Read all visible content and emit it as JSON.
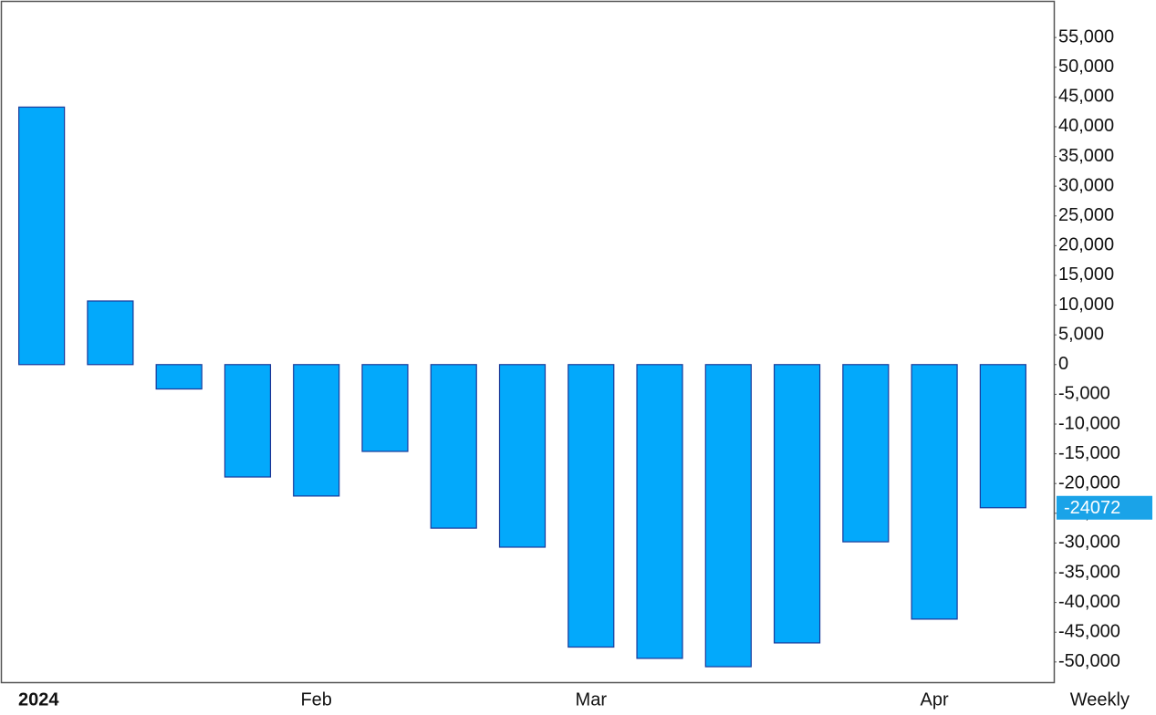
{
  "chart_data": {
    "type": "bar",
    "categories": [
      "2024",
      null,
      null,
      null,
      "Feb",
      null,
      null,
      null,
      "Mar",
      null,
      null,
      null,
      null,
      "Apr",
      null
    ],
    "values": [
      43300,
      10700,
      -4100,
      -18900,
      -22100,
      -14600,
      -27500,
      -30700,
      -47500,
      -49400,
      -50800,
      -46800,
      -29800,
      -42800,
      -24072
    ],
    "color": "#03a9fb",
    "edge_color": "#1a3a9a",
    "period": "Weekly",
    "ylim": [
      -53400,
      61000
    ],
    "yticks": [
      {
        "value": 55000,
        "label": "55,000"
      },
      {
        "value": 50000,
        "label": "50,000"
      },
      {
        "value": 45000,
        "label": "45,000"
      },
      {
        "value": 40000,
        "label": "40,000"
      },
      {
        "value": 35000,
        "label": "35,000"
      },
      {
        "value": 30000,
        "label": "30,000"
      },
      {
        "value": 25000,
        "label": "25,000"
      },
      {
        "value": 20000,
        "label": "20,000"
      },
      {
        "value": 15000,
        "label": "15,000"
      },
      {
        "value": 10000,
        "label": "10,000"
      },
      {
        "value": 5000,
        "label": "5,000"
      },
      0,
      {
        "value": -5000,
        "label": "-5,000"
      },
      {
        "value": -10000,
        "label": "-10,000"
      },
      {
        "value": -15000,
        "label": "-15,000"
      },
      {
        "value": -20000,
        "label": "-20,000"
      },
      {
        "value": -25000,
        "label": "-25,000"
      },
      {
        "value": -30000,
        "label": "-30,000"
      },
      {
        "value": -35000,
        "label": "-35,000"
      },
      {
        "value": -40000,
        "label": "-40,000"
      },
      {
        "value": -45000,
        "label": "-45,000"
      },
      {
        "value": -50000,
        "label": "-50,000"
      }
    ],
    "last_value_color": "#1aa3e8",
    "y_axis_side": "right",
    "grid": false
  }
}
